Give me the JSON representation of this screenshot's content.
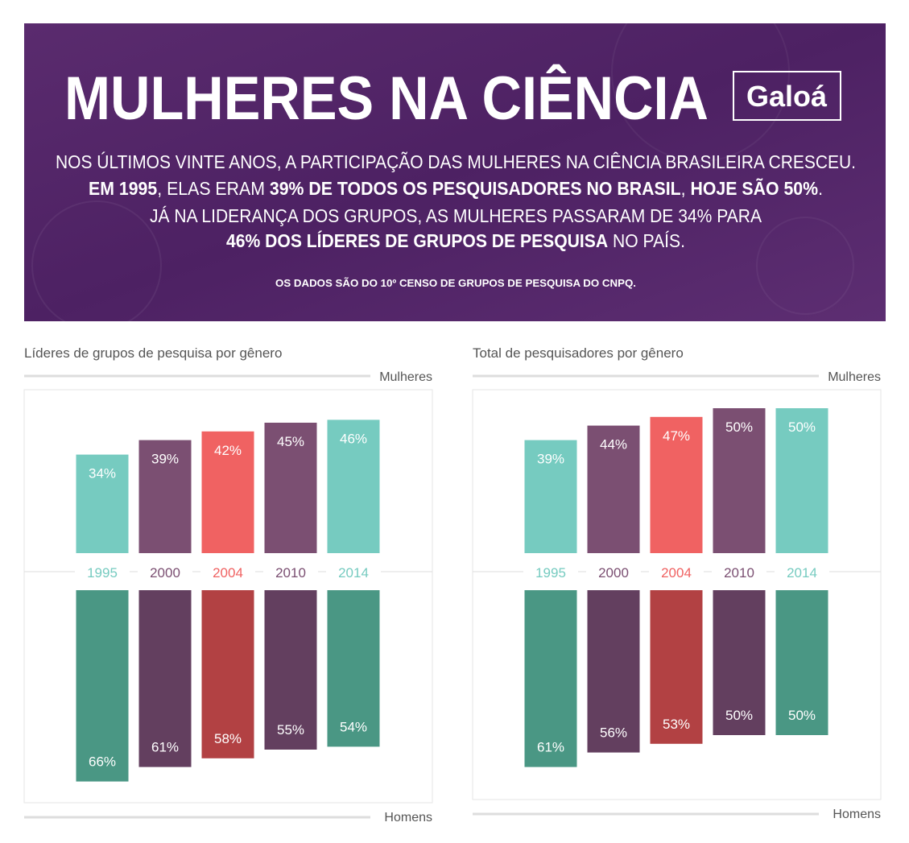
{
  "header": {
    "title": "MULHERES NA CIÊNCIA",
    "logo": "Galoá",
    "lines": [
      [
        {
          "text": "NOS ÚLTIMOS VINTE ANOS, A PARTICIPAÇÃO DAS MULHERES NA CIÊNCIA BRASILEIRA CRESCEU.",
          "bold": false
        }
      ],
      [
        {
          "text": "EM 1995",
          "bold": true
        },
        {
          "text": ", ELAS ERAM ",
          "bold": false
        },
        {
          "text": "39% DE TODOS OS PESQUISADORES NO BRASIL",
          "bold": true
        },
        {
          "text": ", ",
          "bold": false
        },
        {
          "text": "HOJE SÃO 50%",
          "bold": true
        },
        {
          "text": ".",
          "bold": false
        }
      ],
      [
        {
          "text": "JÁ NA LIDERANÇA DOS GRUPOS, AS MULHERES PASSARAM DE 34% PARA",
          "bold": false
        }
      ],
      [
        {
          "text": "46% DOS LÍDERES DE GRUPOS DE PESQUISA",
          "bold": true
        },
        {
          "text": " NO PAÍS.",
          "bold": false
        }
      ]
    ],
    "note": "OS DADOS SÃO DO 10º CENSO DE GRUPOS DE PESQUISA DO CNPQ."
  },
  "chart_data": [
    {
      "type": "diverging-bar",
      "title": "Líderes de grupos de pesquisa por gênero",
      "categories": [
        "1995",
        "2000",
        "2004",
        "2010",
        "2014"
      ],
      "series": [
        {
          "name": "Mulheres",
          "colors": [
            "#76cbc0",
            "#7b4f72",
            "#f06262",
            "#7b4f72",
            "#76cbc0"
          ],
          "values": [
            34,
            39,
            42,
            45,
            46
          ],
          "value_labels": [
            "34%",
            "39%",
            "42%",
            "45%",
            "46%"
          ]
        },
        {
          "name": "Homens",
          "colors": [
            "#4a9784",
            "#633f5f",
            "#b24143",
            "#633f5f",
            "#4a9784"
          ],
          "values": [
            66,
            61,
            58,
            55,
            54
          ],
          "value_labels": [
            "66%",
            "61%",
            "58%",
            "55%",
            "54%"
          ]
        }
      ]
    },
    {
      "type": "diverging-bar",
      "title": "Total de pesquisadores por gênero",
      "categories": [
        "1995",
        "2000",
        "2004",
        "2010",
        "2014"
      ],
      "series": [
        {
          "name": "Mulheres",
          "colors": [
            "#76cbc0",
            "#7b4f72",
            "#f06262",
            "#7b4f72",
            "#76cbc0"
          ],
          "values": [
            39,
            44,
            47,
            50,
            50
          ],
          "value_labels": [
            "39%",
            "44%",
            "47%",
            "50%",
            "50%"
          ]
        },
        {
          "name": "Homens",
          "colors": [
            "#4a9784",
            "#633f5f",
            "#b24143",
            "#633f5f",
            "#4a9784"
          ],
          "values": [
            61,
            56,
            53,
            50,
            50
          ],
          "value_labels": [
            "61%",
            "56%",
            "53%",
            "50%",
            "50%"
          ]
        }
      ]
    }
  ]
}
